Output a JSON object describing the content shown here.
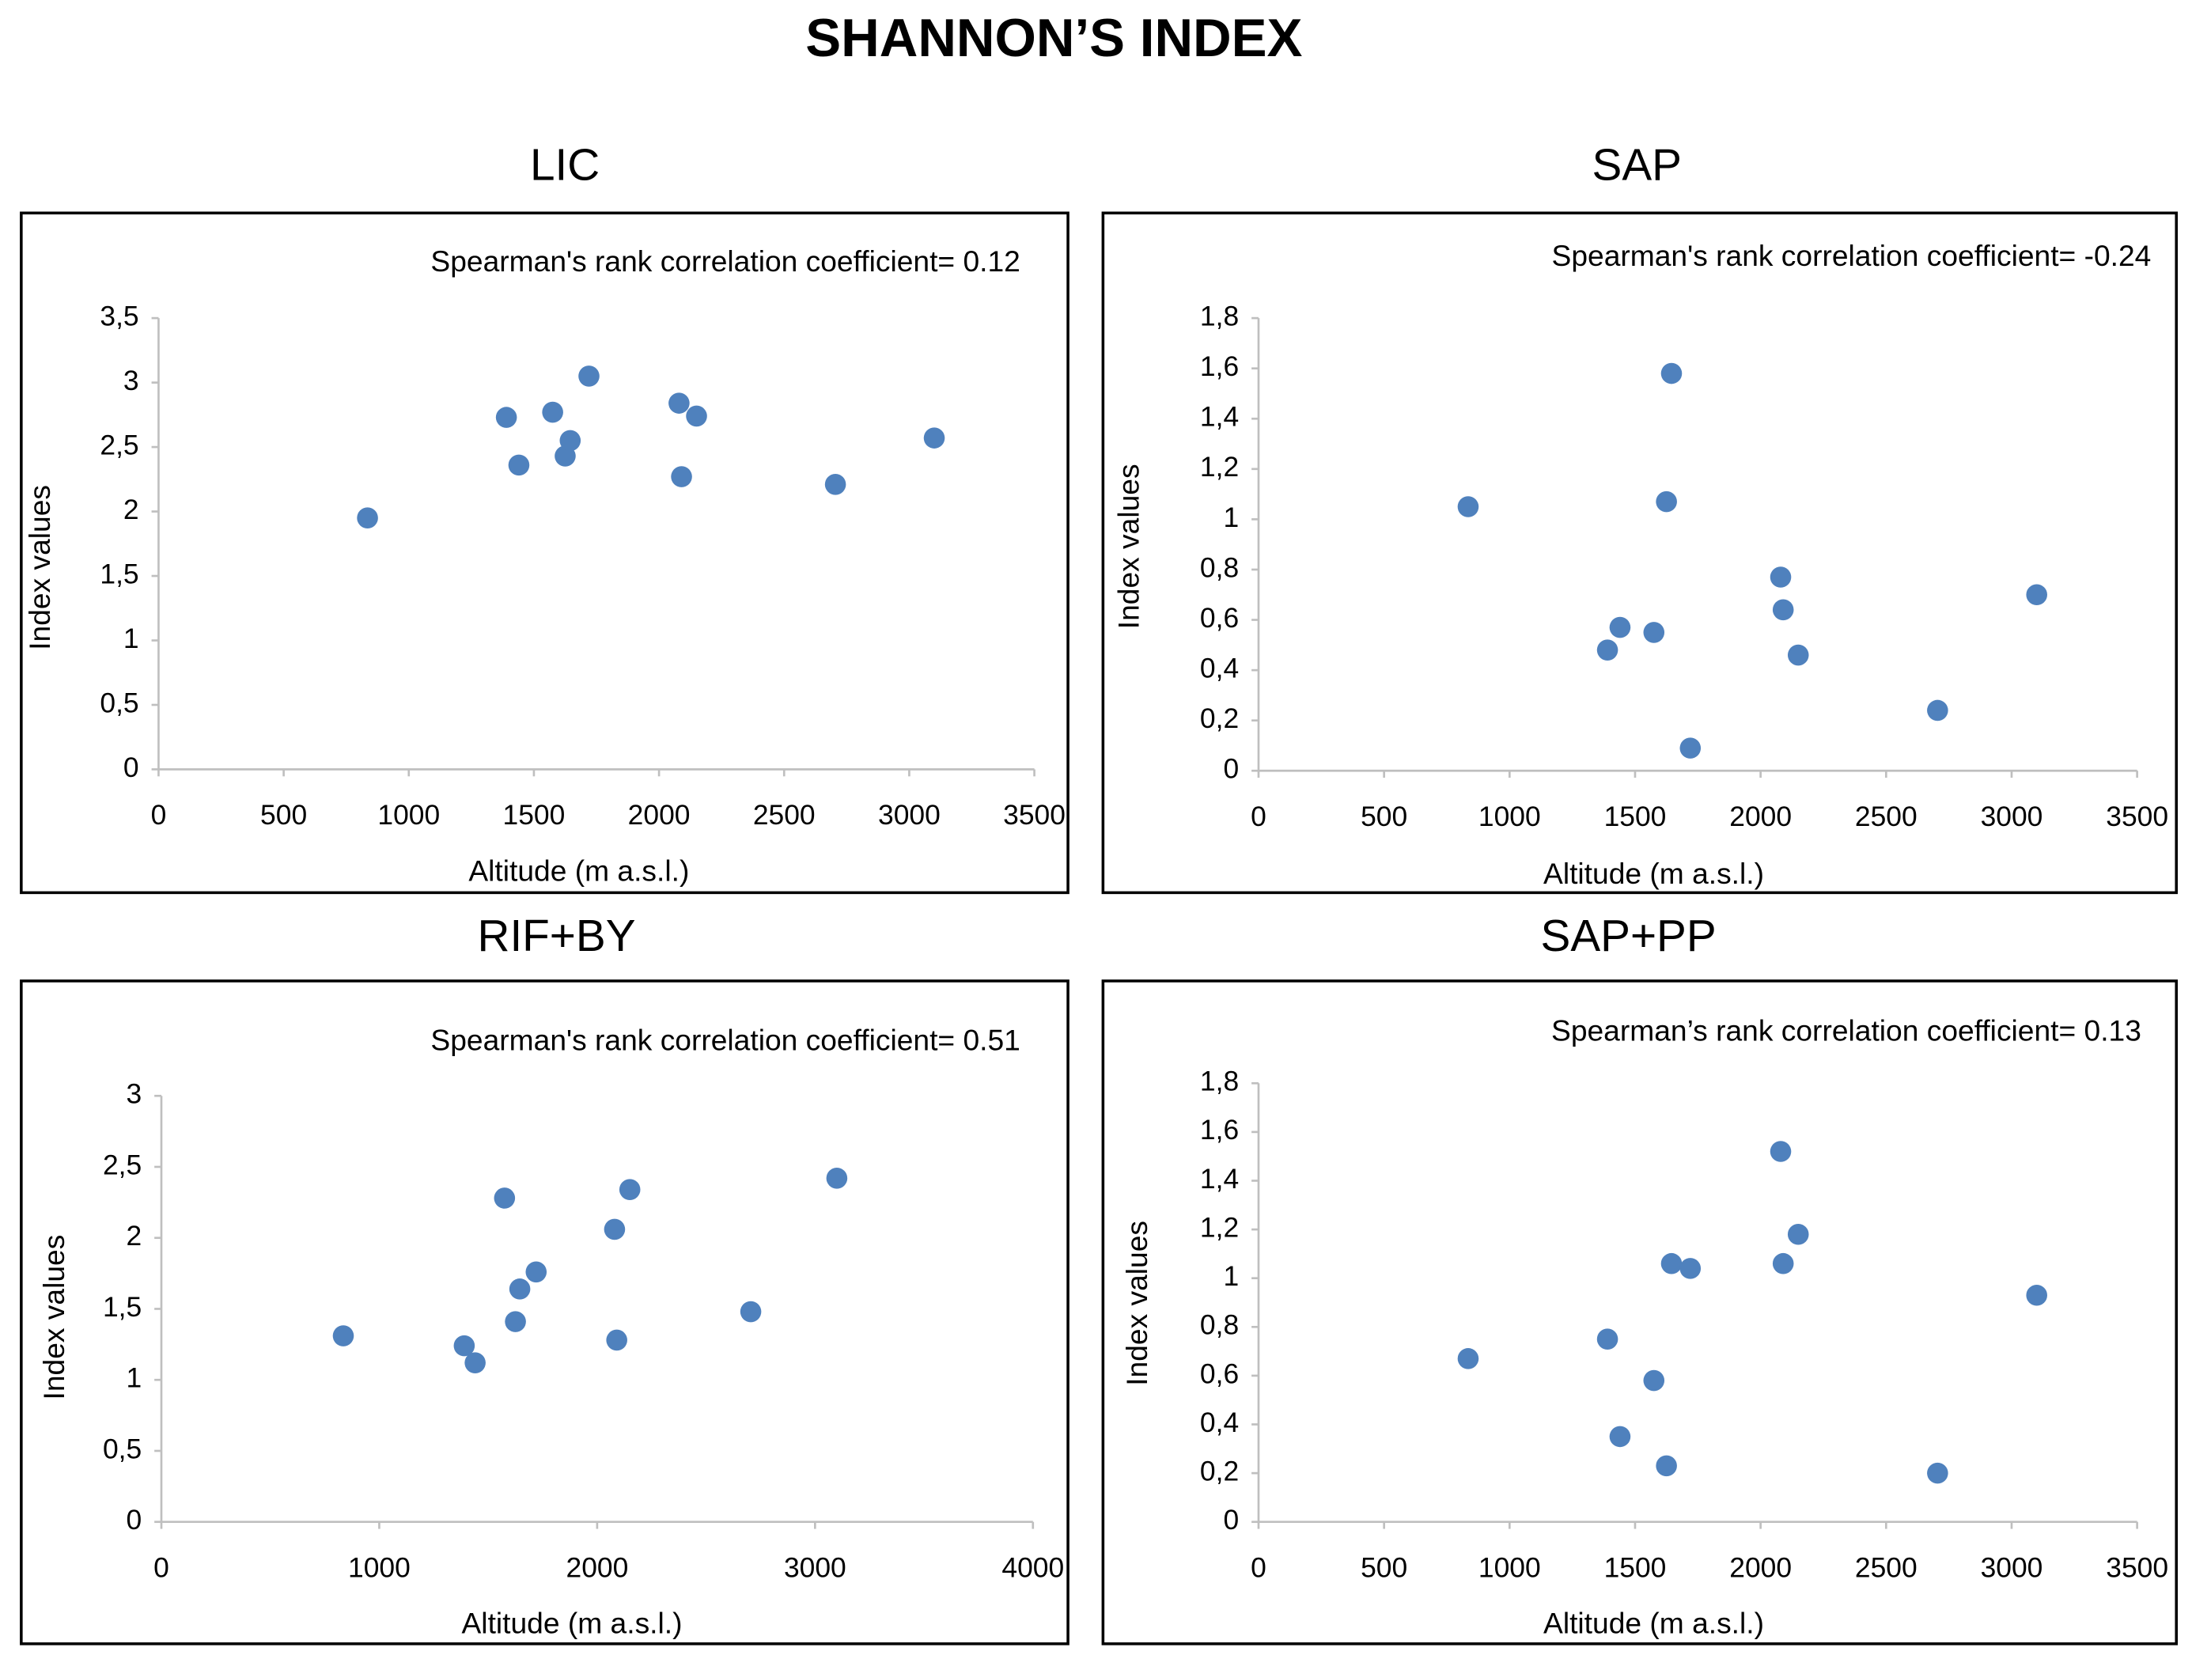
{
  "title": "SHANNON’S INDEX",
  "chart_data": [
    {
      "type": "scatter",
      "title": "LIC",
      "annotation": "Spearman's rank correlation coefficient= 0.12",
      "x_label": "Altitude (m a.s.l.)",
      "y_label": "Index values",
      "color": "#4f81bd",
      "x": [
        835,
        1390,
        1440,
        1575,
        1625,
        1645,
        1720,
        2080,
        2090,
        2150,
        2705,
        3100
      ],
      "values": [
        1.95,
        2.73,
        2.36,
        2.77,
        2.43,
        2.55,
        3.05,
        2.84,
        2.27,
        2.74,
        2.21,
        2.57
      ],
      "xlim": [
        0,
        3500
      ],
      "xticks": [
        0,
        500,
        1000,
        1500,
        2000,
        2500,
        3000,
        3500
      ],
      "ylim": [
        0,
        3.5
      ],
      "yticks": [
        0,
        {
          "value": 0.5,
          "label": "0,5"
        },
        1,
        {
          "value": 1.5,
          "label": "1,5"
        },
        2,
        {
          "value": 2.5,
          "label": "2,5"
        },
        3,
        {
          "value": 3.5,
          "label": "3,5"
        }
      ]
    },
    {
      "type": "scatter",
      "title": "SAP",
      "annotation": "Spearman's rank correlation coefficient= -0.24",
      "x_label": "Altitude (m a.s.l.)",
      "y_label": "Index values",
      "color": "#4f81bd",
      "x": [
        835,
        1390,
        1440,
        1575,
        1625,
        1645,
        1720,
        2080,
        2090,
        2150,
        2705,
        3100
      ],
      "values": [
        1.05,
        0.48,
        0.57,
        0.55,
        1.07,
        1.58,
        0.09,
        0.77,
        0.64,
        0.46,
        0.24,
        0.7
      ],
      "xlim": [
        0,
        3500
      ],
      "xticks": [
        0,
        500,
        1000,
        1500,
        2000,
        2500,
        3000,
        3500
      ],
      "ylim": [
        0,
        1.8
      ],
      "yticks": [
        0,
        {
          "value": 0.2,
          "label": "0,2"
        },
        {
          "value": 0.4,
          "label": "0,4"
        },
        {
          "value": 0.6,
          "label": "0,6"
        },
        {
          "value": 0.8,
          "label": "0,8"
        },
        1,
        {
          "value": 1.2,
          "label": "1,2"
        },
        {
          "value": 1.4,
          "label": "1,4"
        },
        {
          "value": 1.6,
          "label": "1,6"
        },
        {
          "value": 1.8,
          "label": "1,8"
        }
      ]
    },
    {
      "type": "scatter",
      "title": "RIF+BY",
      "annotation": "Spearman's rank correlation coefficient= 0.51",
      "x_label": "Altitude (m a.s.l.)",
      "y_label": "Index values",
      "color": "#4f81bd",
      "x": [
        835,
        1390,
        1440,
        1575,
        1625,
        1645,
        1720,
        2080,
        2090,
        2150,
        2705,
        3100
      ],
      "values": [
        1.31,
        1.24,
        1.12,
        2.28,
        1.41,
        1.64,
        1.76,
        2.06,
        1.28,
        2.34,
        1.48,
        2.42
      ],
      "xlim": [
        0,
        4000
      ],
      "xticks": [
        0,
        1000,
        2000,
        3000,
        4000
      ],
      "ylim": [
        0,
        3
      ],
      "yticks": [
        0,
        {
          "value": 0.5,
          "label": "0,5"
        },
        1,
        {
          "value": 1.5,
          "label": "1,5"
        },
        2,
        {
          "value": 2.5,
          "label": "2,5"
        },
        3
      ]
    },
    {
      "type": "scatter",
      "title": "SAP+PP",
      "annotation": "Spearman’s rank correlation coefficient= 0.13",
      "x_label": "Altitude (m a.s.l.)",
      "y_label": "Index values",
      "color": "#4f81bd",
      "x": [
        835,
        1390,
        1440,
        1575,
        1625,
        1645,
        1720,
        2080,
        2090,
        2150,
        2705,
        3100
      ],
      "values": [
        0.67,
        0.75,
        0.35,
        0.58,
        0.23,
        1.06,
        1.04,
        1.52,
        1.06,
        1.18,
        0.2,
        0.93
      ],
      "xlim": [
        0,
        3500
      ],
      "xticks": [
        0,
        500,
        1000,
        1500,
        2000,
        2500,
        3000,
        3500
      ],
      "ylim": [
        0,
        1.8
      ],
      "yticks": [
        0,
        {
          "value": 0.2,
          "label": "0,2"
        },
        {
          "value": 0.4,
          "label": "0,4"
        },
        {
          "value": 0.6,
          "label": "0,6"
        },
        {
          "value": 0.8,
          "label": "0,8"
        },
        1,
        {
          "value": 1.2,
          "label": "1,2"
        },
        {
          "value": 1.4,
          "label": "1,4"
        },
        {
          "value": 1.6,
          "label": "1,6"
        },
        {
          "value": 1.8,
          "label": "1,8"
        }
      ]
    }
  ]
}
